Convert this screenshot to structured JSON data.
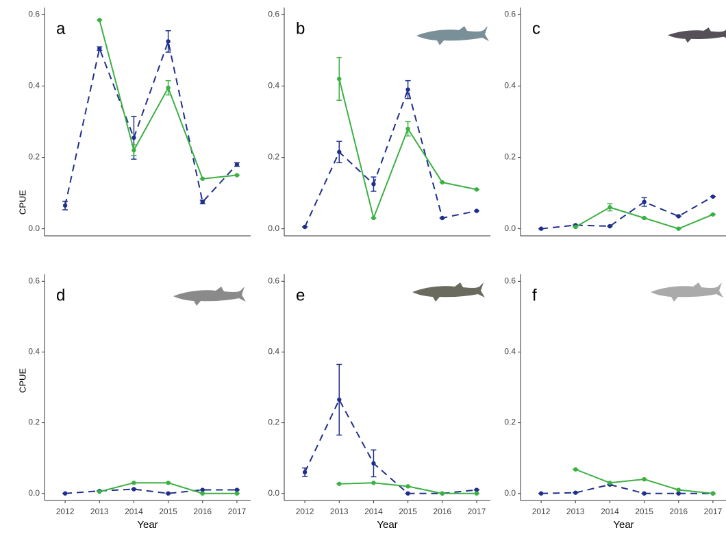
{
  "chart_data": [
    {
      "type": "line",
      "title": "a",
      "ylabel": "CPUE",
      "x": [
        2012,
        2013,
        2014,
        2015,
        2016,
        2017
      ],
      "xlim": [
        2011.4,
        2017.4
      ],
      "ylim": [
        -0.02,
        0.62
      ],
      "yticks": [
        {
          "value": 0,
          "label": "0.0"
        },
        0.2,
        0.4,
        0.6
      ],
      "series": [
        {
          "color": "#1f2f8c",
          "style": "dashed",
          "values": [
            0.065,
            0.505,
            0.255,
            0.525,
            0.075,
            0.18
          ],
          "errors": [
            0.012,
            0.005,
            0.06,
            0.03,
            0.005,
            0.005
          ]
        },
        {
          "color": "#3cb043",
          "style": "solid",
          "values": [
            null,
            0.585,
            0.22,
            0.395,
            0.14,
            0.15
          ],
          "errors": [
            null,
            0,
            0.015,
            0.02,
            0,
            0
          ]
        }
      ]
    },
    {
      "type": "line",
      "title": "b",
      "x": [
        2012,
        2013,
        2014,
        2015,
        2016,
        2017
      ],
      "xlim": [
        2011.4,
        2017.4
      ],
      "ylim": [
        -0.02,
        0.62
      ],
      "yticks": [
        {
          "value": 0,
          "label": "0.0"
        },
        0.2,
        0.4,
        0.6
      ],
      "series": [
        {
          "color": "#1f2f8c",
          "style": "dashed",
          "values": [
            0.005,
            0.215,
            0.125,
            0.39,
            0.03,
            0.05
          ],
          "errors": [
            0,
            0.03,
            0.02,
            0.025,
            0,
            0
          ]
        },
        {
          "color": "#3cb043",
          "style": "solid",
          "values": [
            null,
            0.42,
            0.03,
            0.28,
            0.13,
            0.11
          ],
          "errors": [
            null,
            0.06,
            0,
            0.02,
            0,
            0
          ]
        }
      ]
    },
    {
      "type": "line",
      "title": "c",
      "x": [
        2012,
        2013,
        2014,
        2015,
        2016,
        2017
      ],
      "xlim": [
        2011.4,
        2017.4
      ],
      "ylim": [
        -0.02,
        0.62
      ],
      "yticks": [
        {
          "value": 0,
          "label": "0.0"
        },
        0.2,
        0.4,
        0.6
      ],
      "series": [
        {
          "color": "#1f2f8c",
          "style": "dashed",
          "values": [
            0,
            0.01,
            0.007,
            0.075,
            0.035,
            0.09
          ],
          "errors": [
            0,
            0,
            0,
            0.012,
            0,
            0
          ]
        },
        {
          "color": "#3cb043",
          "style": "solid",
          "values": [
            null,
            0.005,
            0.06,
            0.03,
            0,
            0.04
          ],
          "errors": [
            null,
            0,
            0.01,
            0,
            0,
            0
          ]
        }
      ]
    },
    {
      "type": "line",
      "title": "d",
      "ylabel": "CPUE",
      "xlabel": "Year",
      "x": [
        2012,
        2013,
        2014,
        2015,
        2016,
        2017
      ],
      "xlim": [
        2011.4,
        2017.4
      ],
      "xticks": [
        2012,
        2013,
        2014,
        2015,
        2016,
        2017
      ],
      "ylim": [
        -0.02,
        0.62
      ],
      "yticks": [
        {
          "value": 0,
          "label": "0.0"
        },
        0.2,
        0.4,
        0.6
      ],
      "series": [
        {
          "color": "#1f2f8c",
          "style": "dashed",
          "values": [
            0,
            0.007,
            0.012,
            0,
            0.01,
            0.01
          ],
          "errors": [
            0,
            0,
            0,
            0,
            0,
            0
          ]
        },
        {
          "color": "#3cb043",
          "style": "solid",
          "values": [
            null,
            0.005,
            0.03,
            0.03,
            0,
            0
          ],
          "errors": [
            null,
            0,
            0,
            0,
            0,
            0
          ]
        }
      ]
    },
    {
      "type": "line",
      "title": "e",
      "xlabel": "Year",
      "x": [
        2012,
        2013,
        2014,
        2015,
        2016,
        2017
      ],
      "xlim": [
        2011.4,
        2017.4
      ],
      "xticks": [
        2012,
        2013,
        2014,
        2015,
        2016,
        2017
      ],
      "ylim": [
        -0.02,
        0.62
      ],
      "yticks": [
        {
          "value": 0,
          "label": "0.0"
        },
        0.2,
        0.4,
        0.6
      ],
      "series": [
        {
          "color": "#1f2f8c",
          "style": "dashed",
          "values": [
            0.06,
            0.265,
            0.085,
            0,
            0,
            0.01
          ],
          "errors": [
            0.012,
            0.1,
            0.038,
            0,
            0,
            0
          ]
        },
        {
          "color": "#3cb043",
          "style": "solid",
          "values": [
            null,
            0.027,
            0.03,
            0.02,
            0,
            0
          ],
          "errors": [
            null,
            0,
            0,
            0,
            0,
            0
          ]
        }
      ]
    },
    {
      "type": "line",
      "title": "f",
      "xlabel": "Year",
      "x": [
        2012,
        2013,
        2014,
        2015,
        2016,
        2017
      ],
      "xlim": [
        2011.4,
        2017.4
      ],
      "xticks": [
        2012,
        2013,
        2014,
        2015,
        2016,
        2017
      ],
      "ylim": [
        -0.02,
        0.62
      ],
      "yticks": [
        {
          "value": 0,
          "label": "0.0"
        },
        0.2,
        0.4,
        0.6
      ],
      "series": [
        {
          "color": "#1f2f8c",
          "style": "dashed",
          "values": [
            0,
            0.002,
            0.025,
            0,
            0,
            0
          ],
          "errors": [
            0,
            0,
            0,
            0,
            0,
            0
          ]
        },
        {
          "color": "#3cb043",
          "style": "solid",
          "values": [
            null,
            0.068,
            0.03,
            0.04,
            0.01,
            0
          ],
          "errors": [
            null,
            0,
            0,
            0,
            0,
            0
          ]
        }
      ]
    }
  ]
}
